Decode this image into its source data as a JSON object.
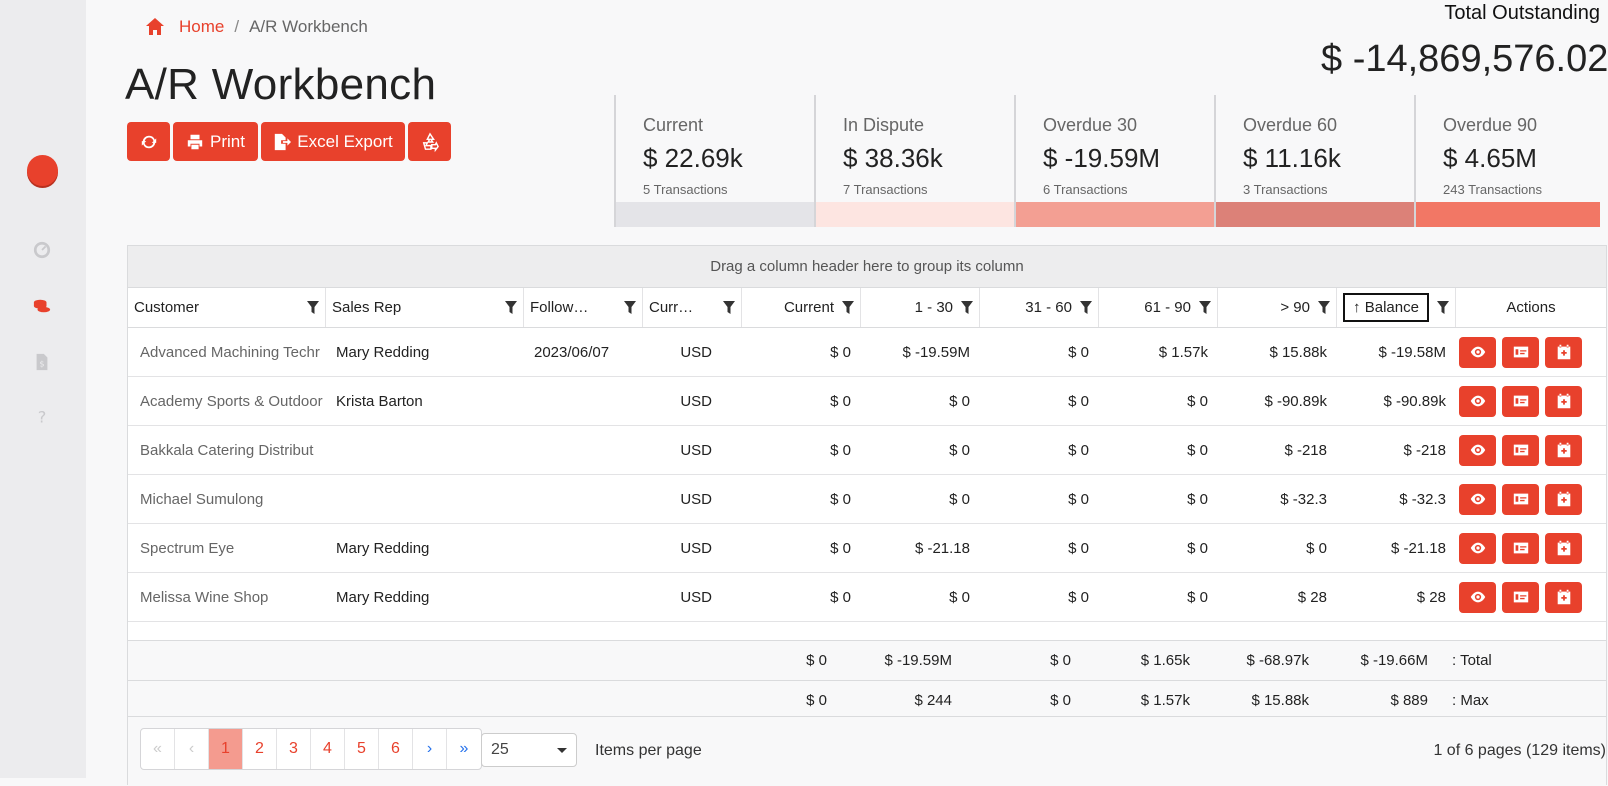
{
  "breadcrumb": {
    "home": "Home",
    "separator": "/",
    "current": "A/R Workbench"
  },
  "page_title": "A/R Workbench",
  "toolbar": {
    "print_label": "Print",
    "excel_label": "Excel Export"
  },
  "total": {
    "label": "Total Outstanding",
    "value": "$ -14,869,576.02"
  },
  "summary": [
    {
      "label": "Current",
      "value": "$ 22.69k",
      "count": "5 Transactions",
      "color": "#e4e4e8"
    },
    {
      "label": "In Dispute",
      "value": "$ 38.36k",
      "count": "7 Transactions",
      "color": "#fde5e1"
    },
    {
      "label": "Overdue 30",
      "value": "$ -19.59M",
      "count": "6 Transactions",
      "color": "#f39f93"
    },
    {
      "label": "Overdue 60",
      "value": "$ 11.16k",
      "count": "3 Transactions",
      "color": "#dc8178"
    },
    {
      "label": "Overdue 90",
      "value": "$ 4.65M",
      "count": "243 Transactions",
      "color": "#f27765"
    }
  ],
  "grid": {
    "group_hint": "Drag a column header here to group its column",
    "columns": [
      "Customer",
      "Sales Rep",
      "Follow…",
      "Curr…",
      "Current",
      "1 - 30",
      "31 - 60",
      "61 - 90",
      "> 90",
      "Balance",
      "Actions"
    ],
    "rows": [
      {
        "customer": "Advanced Machining Techr",
        "rep": "Mary Redding",
        "follow": "2023/06/07",
        "curr": "USD",
        "current": "$ 0",
        "d1_30": "$ -19.59M",
        "d31_60": "$ 0",
        "d61_90": "$ 1.57k",
        "d90": "$ 15.88k",
        "balance": "$ -19.58M"
      },
      {
        "customer": "Academy Sports & Outdoor",
        "rep": "Krista Barton",
        "follow": "",
        "curr": "USD",
        "current": "$ 0",
        "d1_30": "$ 0",
        "d31_60": "$ 0",
        "d61_90": "$ 0",
        "d90": "$ -90.89k",
        "balance": "$ -90.89k"
      },
      {
        "customer": "Bakkala Catering Distribut",
        "rep": "",
        "follow": "",
        "curr": "USD",
        "current": "$ 0",
        "d1_30": "$ 0",
        "d31_60": "$ 0",
        "d61_90": "$ 0",
        "d90": "$ -218",
        "balance": "$ -218"
      },
      {
        "customer": "Michael Sumulong",
        "rep": "",
        "follow": "",
        "curr": "USD",
        "current": "$ 0",
        "d1_30": "$ 0",
        "d31_60": "$ 0",
        "d61_90": "$ 0",
        "d90": "$ -32.3",
        "balance": "$ -32.3"
      },
      {
        "customer": "Spectrum Eye",
        "rep": "Mary Redding",
        "follow": "",
        "curr": "USD",
        "current": "$ 0",
        "d1_30": "$ -21.18",
        "d31_60": "$ 0",
        "d61_90": "$ 0",
        "d90": "$ 0",
        "balance": "$ -21.18"
      },
      {
        "customer": "Melissa Wine Shop",
        "rep": "Mary Redding",
        "follow": "",
        "curr": "USD",
        "current": "$ 0",
        "d1_30": "$ 0",
        "d31_60": "$ 0",
        "d61_90": "$ 0",
        "d90": "$ 28",
        "balance": "$ 28"
      }
    ],
    "total_row": {
      "current": "$ 0",
      "d1_30": "$ -19.59M",
      "d31_60": "$ 0",
      "d61_90": "$ 1.65k",
      "d90": "$ -68.97k",
      "balance": "$ -19.66M",
      "label": ": Total"
    },
    "max_row": {
      "current": "$ 0",
      "d1_30": "$ 244",
      "d31_60": "$ 0",
      "d61_90": "$ 1.57k",
      "d90": "$ 15.88k",
      "balance": "$ 889",
      "label": ": Max"
    }
  },
  "pager": {
    "pages": [
      "1",
      "2",
      "3",
      "4",
      "5",
      "6"
    ],
    "active_page": "1",
    "page_size": "25",
    "items_per_page_label": "Items per page",
    "info": "1 of 6 pages (129 items)"
  },
  "colors": {
    "accent": "#e8412c",
    "pager_nav": "#2672ec"
  }
}
